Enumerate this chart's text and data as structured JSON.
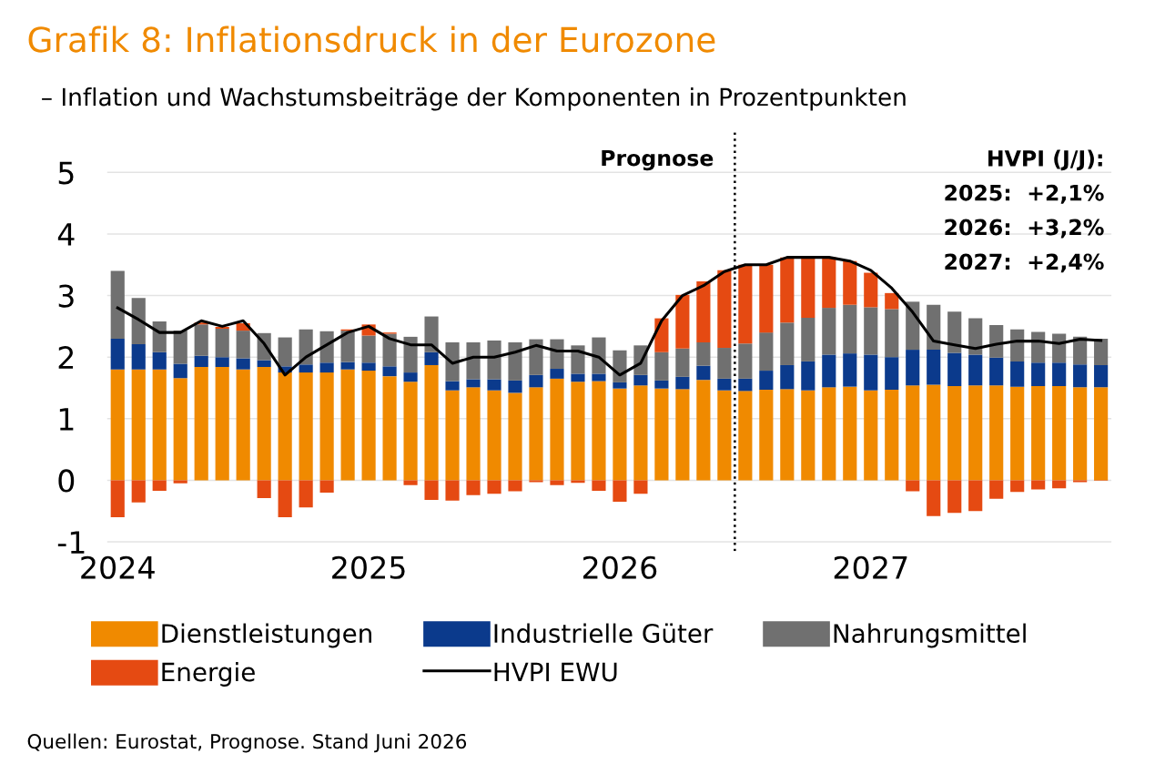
{
  "chart_data": {
    "type": "bar",
    "stacked": true,
    "title": "Grafik 8: Inflationsdruck in der Eurozone",
    "subtitle": "– Inflation und Wachstumsbeiträge der Komponenten in Prozentpunkten",
    "x": [
      "2024-01",
      "2024-02",
      "2024-03",
      "2024-04",
      "2024-05",
      "2024-06",
      "2024-07",
      "2024-08",
      "2024-09",
      "2024-10",
      "2024-11",
      "2024-12",
      "2025-01",
      "2025-02",
      "2025-03",
      "2025-04",
      "2025-05",
      "2025-06",
      "2025-07",
      "2025-08",
      "2025-09",
      "2025-10",
      "2025-11",
      "2025-12",
      "2026-01",
      "2026-02",
      "2026-03",
      "2026-04",
      "2026-05",
      "2026-06",
      "2026-07",
      "2026-08",
      "2026-09",
      "2026-10",
      "2026-11",
      "2026-12",
      "2027-01",
      "2027-02",
      "2027-03",
      "2027-04",
      "2027-05",
      "2027-06",
      "2027-07",
      "2027-08",
      "2027-09",
      "2027-10",
      "2027-11",
      "2027-12"
    ],
    "xlim": [
      "2023-12-16",
      "2027-12-16"
    ],
    "xticks": [
      {
        "value": "2024-01",
        "label": "2024"
      },
      {
        "value": "2025-01",
        "label": "2025"
      },
      {
        "value": "2026-01",
        "label": "2026"
      },
      {
        "value": "2027-01",
        "label": "2027"
      }
    ],
    "ylim": [
      -1.15,
      5.65
    ],
    "yticks": [
      -1,
      0,
      1,
      2,
      3,
      4,
      5
    ],
    "grid": "y",
    "legend": "bottom",
    "series": [
      {
        "name": "Dienstleistungen",
        "color": "#f08a00",
        "values": [
          1.8,
          1.8,
          1.8,
          1.66,
          1.84,
          1.84,
          1.8,
          1.84,
          1.75,
          1.75,
          1.75,
          1.8,
          1.78,
          1.69,
          1.6,
          1.87,
          1.46,
          1.51,
          1.46,
          1.42,
          1.51,
          1.65,
          1.6,
          1.61,
          1.49,
          1.54,
          1.49,
          1.48,
          1.63,
          1.46,
          1.45,
          1.47,
          1.48,
          1.46,
          1.51,
          1.52,
          1.46,
          1.47,
          1.54,
          1.55,
          1.53,
          1.54,
          1.54,
          1.52,
          1.53,
          1.53,
          1.51,
          1.51
        ]
      },
      {
        "name": "Industrielle Güter",
        "color": "#0b3a8c",
        "values": [
          0.5,
          0.41,
          0.28,
          0.23,
          0.18,
          0.16,
          0.18,
          0.11,
          0.1,
          0.13,
          0.16,
          0.12,
          0.13,
          0.16,
          0.15,
          0.21,
          0.15,
          0.13,
          0.18,
          0.2,
          0.2,
          0.16,
          0.13,
          0.12,
          0.1,
          0.17,
          0.13,
          0.2,
          0.23,
          0.19,
          0.2,
          0.31,
          0.39,
          0.47,
          0.53,
          0.54,
          0.58,
          0.53,
          0.58,
          0.57,
          0.54,
          0.5,
          0.45,
          0.41,
          0.38,
          0.38,
          0.37,
          0.36
        ]
      },
      {
        "name": "Nahrungsmittel",
        "color": "#707070",
        "values": [
          1.1,
          0.75,
          0.5,
          0.54,
          0.51,
          0.46,
          0.45,
          0.44,
          0.47,
          0.57,
          0.51,
          0.51,
          0.44,
          0.53,
          0.58,
          0.58,
          0.63,
          0.6,
          0.63,
          0.62,
          0.58,
          0.48,
          0.46,
          0.59,
          0.52,
          0.48,
          0.46,
          0.46,
          0.38,
          0.5,
          0.57,
          0.62,
          0.69,
          0.71,
          0.76,
          0.79,
          0.77,
          0.78,
          0.78,
          0.73,
          0.67,
          0.59,
          0.53,
          0.52,
          0.5,
          0.47,
          0.45,
          0.43
        ]
      },
      {
        "name": "Energie",
        "color": "#e54a12",
        "values": [
          -0.6,
          -0.36,
          -0.17,
          -0.05,
          0.03,
          0.03,
          0.12,
          -0.29,
          -0.6,
          -0.44,
          -0.2,
          0.02,
          0.18,
          0.02,
          -0.08,
          -0.32,
          -0.33,
          -0.24,
          -0.22,
          -0.18,
          -0.03,
          -0.08,
          -0.04,
          -0.17,
          -0.35,
          -0.22,
          0.55,
          0.87,
          0.99,
          1.26,
          1.28,
          1.1,
          1.06,
          0.98,
          0.82,
          0.71,
          0.56,
          0.26,
          -0.18,
          -0.58,
          -0.53,
          -0.5,
          -0.3,
          -0.19,
          -0.15,
          -0.13,
          -0.03,
          -0.01
        ]
      },
      {
        "name": "HVPI EWU",
        "type": "line",
        "color": "#000000",
        "values": [
          2.8,
          2.61,
          2.4,
          2.4,
          2.59,
          2.5,
          2.59,
          2.22,
          1.71,
          2.0,
          2.2,
          2.4,
          2.5,
          2.3,
          2.2,
          2.2,
          1.9,
          2.0,
          2.0,
          2.08,
          2.19,
          2.1,
          2.1,
          2.0,
          1.71,
          1.9,
          2.59,
          3.0,
          3.16,
          3.39,
          3.5,
          3.5,
          3.62,
          3.62,
          3.62,
          3.56,
          3.41,
          3.12,
          2.73,
          2.26,
          2.2,
          2.14,
          2.21,
          2.26,
          2.26,
          2.22,
          2.29,
          2.27
        ]
      }
    ],
    "ref_lines": [
      {
        "axis": "x",
        "value": "2026-06-16",
        "label": "Prognose",
        "color": "#000000",
        "line_style": "dotted"
      }
    ],
    "annotations": [
      "HVPI (J/J):",
      "2025:  +2,1%",
      "2026:  +3,2%",
      "2027:  +2,4%",
      "Quellen: Eurostat, Prognose. Stand Juni 2026"
    ]
  }
}
